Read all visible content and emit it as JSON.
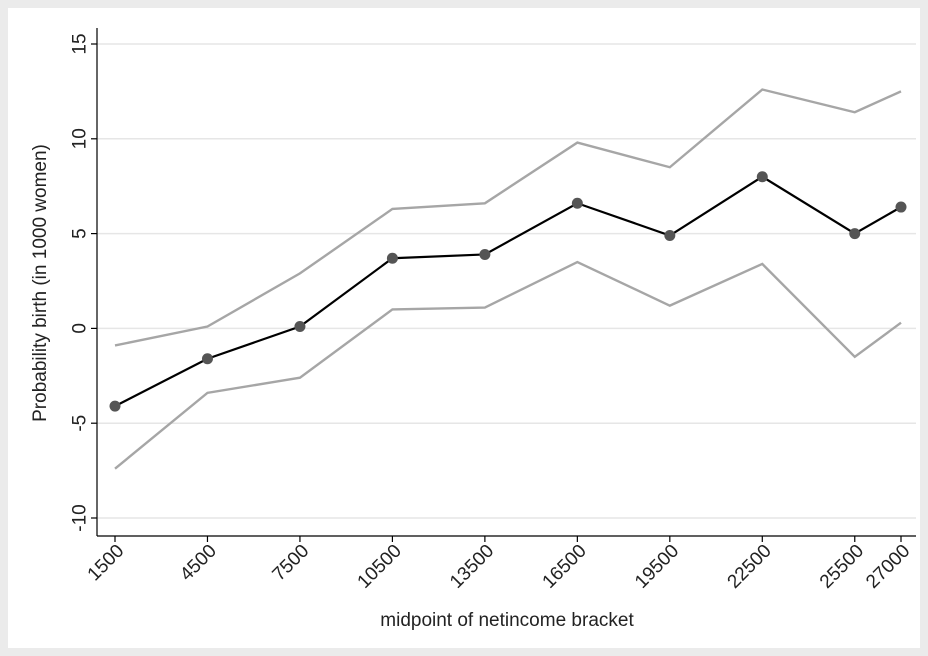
{
  "chart_data": {
    "type": "line",
    "xlabel": "midpoint of netincome bracket",
    "ylabel": "Probability birth (in 1000 women)",
    "x": [
      1500,
      4500,
      7500,
      10500,
      13500,
      16500,
      19500,
      22500,
      25500,
      27000
    ],
    "x_tick_labels": [
      "1500",
      "4500",
      "7500",
      "10500",
      "13500",
      "16500",
      "19500",
      "22500",
      "25500",
      "27000"
    ],
    "y_ticks": [
      15,
      10,
      5,
      0,
      -5,
      -10
    ],
    "y_tick_labels": [
      "15",
      "10",
      "5",
      "0",
      "-5",
      "-10"
    ],
    "ylim": [
      -10.5,
      15.6
    ],
    "grid": true,
    "series": [
      {
        "role": "estimate",
        "color": "#000000",
        "marker_color": "#555555",
        "markers": true,
        "values": [
          -4.1,
          -1.6,
          0.1,
          3.7,
          3.9,
          6.6,
          4.9,
          8.0,
          5.0,
          6.4
        ]
      },
      {
        "role": "upper",
        "color": "#a6a6a6",
        "markers": false,
        "values": [
          -0.9,
          0.1,
          2.9,
          6.3,
          6.6,
          9.8,
          8.5,
          12.6,
          11.4,
          12.5
        ]
      },
      {
        "role": "lower",
        "color": "#a6a6a6",
        "markers": false,
        "values": [
          -7.4,
          -3.4,
          -2.6,
          1.0,
          1.1,
          3.5,
          1.2,
          3.4,
          -1.5,
          0.3
        ]
      }
    ]
  }
}
